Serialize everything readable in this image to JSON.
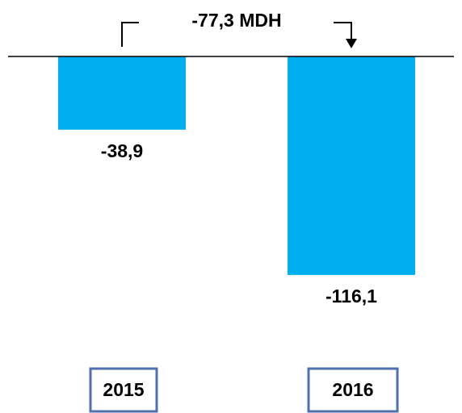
{
  "chart_data": {
    "type": "bar",
    "annotation": "-77,3 MDH",
    "categories": [
      "2015",
      "2016"
    ],
    "values": [
      -38.9,
      -116.1
    ],
    "value_labels": [
      "-38,9",
      "-116,1"
    ],
    "color": "#00aeef",
    "ylim": [
      -120,
      0
    ]
  }
}
